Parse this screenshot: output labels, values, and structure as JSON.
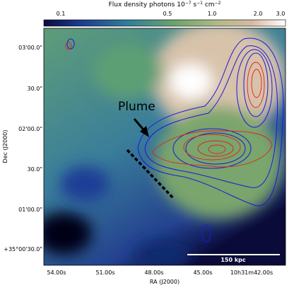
{
  "colorbar": {
    "title_parts": [
      "Flux density photons 10",
      "−7",
      " s",
      "−1",
      " cm",
      "−2"
    ],
    "ticks": [
      "0.1",
      "0.5",
      "1.0",
      "2.0",
      "3.0"
    ]
  },
  "axes": {
    "x_label": "RA (J2000)",
    "y_label": "Dec (J2000)",
    "x_ticks": [
      "54.00s",
      "51.00s",
      "48.00s",
      "45.00s",
      "10h31m42.00s"
    ],
    "y_ticks": [
      "03'00.0\"",
      "30.0\"",
      "02'00.0\"",
      "30.0\"",
      "01'00.0\"",
      "+35°00'30.0\""
    ]
  },
  "annotations": {
    "plume": "Plume",
    "scale_bar": "150 kpc"
  }
}
